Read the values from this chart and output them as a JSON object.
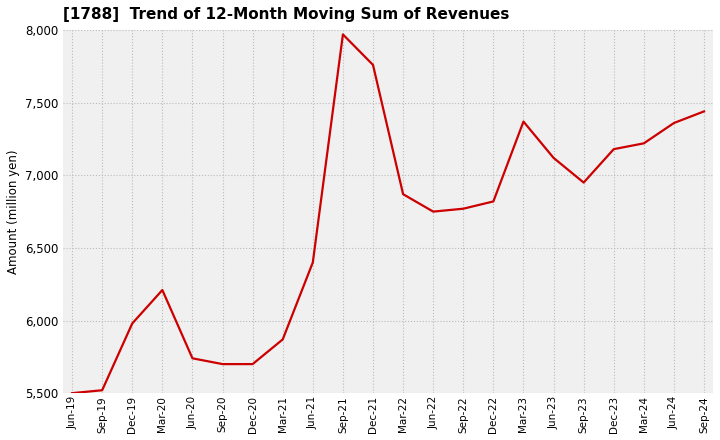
{
  "title": "[1788]  Trend of 12-Month Moving Sum of Revenues",
  "ylabel": "Amount (million yen)",
  "line_color": "#CC0000",
  "background_color": "#ffffff",
  "plot_bg_color": "#f0f0f0",
  "grid_color": "#bbbbbb",
  "ylim": [
    5500,
    8000
  ],
  "yticks": [
    5500,
    6000,
    6500,
    7000,
    7500,
    8000
  ],
  "x_labels": [
    "Jun-19",
    "Sep-19",
    "Dec-19",
    "Mar-20",
    "Jun-20",
    "Sep-20",
    "Dec-20",
    "Mar-21",
    "Jun-21",
    "Sep-21",
    "Dec-21",
    "Mar-22",
    "Jun-22",
    "Sep-22",
    "Dec-22",
    "Mar-23",
    "Jun-23",
    "Sep-23",
    "Dec-23",
    "Mar-24",
    "Jun-24",
    "Sep-24"
  ],
  "values": [
    5500,
    5520,
    5980,
    6210,
    5740,
    5700,
    5700,
    5870,
    6400,
    7970,
    7760,
    6870,
    6750,
    6770,
    6820,
    7370,
    7120,
    6950,
    7180,
    7220,
    7360,
    7440
  ]
}
